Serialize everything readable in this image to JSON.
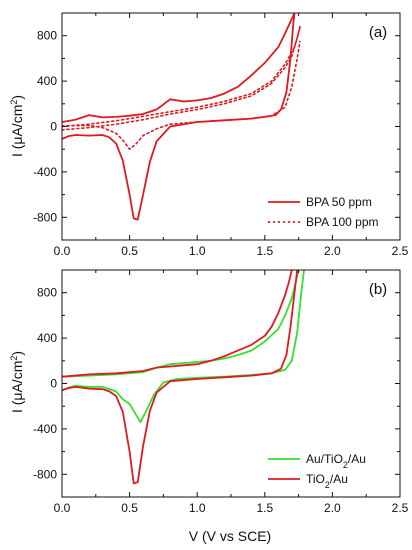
{
  "figure": {
    "xlabel_main": "V (V vs SCE)",
    "ylabel_main": "I (μA/cm",
    "ylabel_sup": "2",
    "ylabel_close": ")"
  },
  "colors": {
    "red": "#e0191f",
    "green": "#33e12b",
    "axis": "#111111"
  },
  "chart_data": [
    {
      "type": "line",
      "panel_label": "(a)",
      "xlim": [
        0,
        2.5
      ],
      "ylim": [
        -1000,
        1000
      ],
      "x_ticks": [
        "0.0",
        "0.5",
        "1.0",
        "1.5",
        "2.0",
        "2.5"
      ],
      "y_ticks": [
        "-800",
        "-400",
        "0",
        "400",
        "800"
      ],
      "x_tick_values": [
        0,
        0.5,
        1.0,
        1.5,
        2.0,
        2.5
      ],
      "y_tick_values": [
        -800,
        -400,
        0,
        400,
        800
      ],
      "legend_position": "bottom-right",
      "series": [
        {
          "name": "BPA 50 ppm",
          "color": "#e0191f",
          "style": "solid",
          "paths": [
            [
              [
                0.0,
                40
              ],
              [
                0.1,
                60
              ],
              [
                0.2,
                100
              ],
              [
                0.3,
                80
              ],
              [
                0.4,
                85
              ],
              [
                0.5,
                95
              ],
              [
                0.6,
                110
              ],
              [
                0.7,
                150
              ],
              [
                0.8,
                240
              ],
              [
                0.9,
                220
              ],
              [
                1.0,
                230
              ],
              [
                1.1,
                250
              ],
              [
                1.2,
                290
              ],
              [
                1.3,
                350
              ],
              [
                1.4,
                450
              ],
              [
                1.5,
                560
              ],
              [
                1.6,
                700
              ],
              [
                1.65,
                820
              ],
              [
                1.7,
                950
              ],
              [
                1.72,
                1000
              ]
            ],
            [
              [
                0.0,
                -110
              ],
              [
                0.05,
                -85
              ],
              [
                0.1,
                -75
              ],
              [
                0.2,
                -80
              ],
              [
                0.3,
                -75
              ],
              [
                0.35,
                -95
              ],
              [
                0.4,
                -150
              ],
              [
                0.45,
                -300
              ],
              [
                0.5,
                -600
              ],
              [
                0.53,
                -810
              ],
              [
                0.56,
                -820
              ],
              [
                0.6,
                -600
              ],
              [
                0.65,
                -310
              ],
              [
                0.7,
                -130
              ],
              [
                0.8,
                0
              ],
              [
                1.0,
                40
              ],
              [
                1.2,
                55
              ],
              [
                1.4,
                70
              ],
              [
                1.5,
                85
              ],
              [
                1.58,
                100
              ],
              [
                1.62,
                150
              ],
              [
                1.66,
                300
              ],
              [
                1.69,
                600
              ],
              [
                1.71,
                900
              ],
              [
                1.72,
                1000
              ]
            ]
          ]
        },
        {
          "name": "BPA 100 ppm",
          "color": "#e0191f",
          "style": "dotted",
          "paths": [
            [
              [
                0.0,
                -30
              ],
              [
                0.2,
                -10
              ],
              [
                0.4,
                20
              ],
              [
                0.6,
                60
              ],
              [
                0.8,
                110
              ],
              [
                1.0,
                150
              ],
              [
                1.2,
                200
              ],
              [
                1.4,
                270
              ],
              [
                1.55,
                380
              ],
              [
                1.65,
                520
              ],
              [
                1.7,
                620
              ],
              [
                1.74,
                780
              ],
              [
                1.76,
                880
              ]
            ],
            [
              [
                0.0,
                0
              ],
              [
                0.2,
                20
              ],
              [
                0.4,
                50
              ],
              [
                0.6,
                90
              ],
              [
                0.8,
                130
              ],
              [
                1.0,
                170
              ],
              [
                1.2,
                220
              ],
              [
                1.4,
                290
              ],
              [
                1.55,
                400
              ],
              [
                1.65,
                550
              ],
              [
                1.72,
                700
              ],
              [
                1.76,
                870
              ]
            ],
            [
              [
                0.0,
                5
              ],
              [
                0.2,
                10
              ],
              [
                0.3,
                -10
              ],
              [
                0.4,
                -60
              ],
              [
                0.45,
                -120
              ],
              [
                0.5,
                -200
              ],
              [
                0.55,
                -150
              ],
              [
                0.6,
                -80
              ],
              [
                0.7,
                -20
              ],
              [
                0.8,
                20
              ],
              [
                1.0,
                40
              ],
              [
                1.2,
                55
              ],
              [
                1.4,
                70
              ],
              [
                1.55,
                95
              ],
              [
                1.65,
                170
              ],
              [
                1.7,
                350
              ],
              [
                1.74,
                600
              ],
              [
                1.76,
                750
              ]
            ]
          ]
        }
      ]
    },
    {
      "type": "line",
      "panel_label": "(b)",
      "xlim": [
        0,
        2.5
      ],
      "ylim": [
        -1000,
        1000
      ],
      "x_ticks": [
        "0.0",
        "0.5",
        "1.0",
        "1.5",
        "2.0",
        "2.5"
      ],
      "y_ticks": [
        "-800",
        "-400",
        "0",
        "400",
        "800"
      ],
      "x_tick_values": [
        0,
        0.5,
        1.0,
        1.5,
        2.0,
        2.5
      ],
      "y_tick_values": [
        -800,
        -400,
        0,
        400,
        800
      ],
      "legend_position": "bottom-right",
      "series": [
        {
          "name": "Au/TiO",
          "name_sub": "2",
          "name_tail": "/Au",
          "color": "#33e12b",
          "style": "solid",
          "paths": [
            [
              [
                0.0,
                60
              ],
              [
                0.2,
                70
              ],
              [
                0.4,
                80
              ],
              [
                0.6,
                100
              ],
              [
                0.7,
                140
              ],
              [
                0.8,
                170
              ],
              [
                0.9,
                180
              ],
              [
                1.0,
                190
              ],
              [
                1.1,
                200
              ],
              [
                1.2,
                220
              ],
              [
                1.3,
                250
              ],
              [
                1.4,
                290
              ],
              [
                1.5,
                370
              ],
              [
                1.6,
                480
              ],
              [
                1.65,
                600
              ],
              [
                1.7,
                750
              ],
              [
                1.73,
                900
              ],
              [
                1.75,
                1000
              ]
            ],
            [
              [
                0.0,
                -60
              ],
              [
                0.05,
                -35
              ],
              [
                0.1,
                -20
              ],
              [
                0.2,
                -30
              ],
              [
                0.3,
                -30
              ],
              [
                0.4,
                -70
              ],
              [
                0.45,
                -140
              ],
              [
                0.5,
                -180
              ],
              [
                0.55,
                -280
              ],
              [
                0.58,
                -340
              ],
              [
                0.62,
                -250
              ],
              [
                0.68,
                -100
              ],
              [
                0.75,
                10
              ],
              [
                0.85,
                40
              ],
              [
                1.0,
                50
              ],
              [
                1.2,
                60
              ],
              [
                1.4,
                75
              ],
              [
                1.55,
                90
              ],
              [
                1.65,
                120
              ],
              [
                1.7,
                200
              ],
              [
                1.74,
                450
              ],
              [
                1.77,
                800
              ],
              [
                1.79,
                1000
              ]
            ]
          ]
        },
        {
          "name": "TiO",
          "name_sub": "2",
          "name_tail": "/Au",
          "color": "#e0191f",
          "style": "solid",
          "paths": [
            [
              [
                0.0,
                60
              ],
              [
                0.2,
                80
              ],
              [
                0.4,
                90
              ],
              [
                0.6,
                110
              ],
              [
                0.7,
                140
              ],
              [
                0.8,
                150
              ],
              [
                0.9,
                160
              ],
              [
                1.0,
                170
              ],
              [
                1.1,
                200
              ],
              [
                1.2,
                240
              ],
              [
                1.3,
                290
              ],
              [
                1.4,
                340
              ],
              [
                1.5,
                420
              ],
              [
                1.55,
                500
              ],
              [
                1.6,
                620
              ],
              [
                1.65,
                780
              ],
              [
                1.68,
                900
              ],
              [
                1.7,
                1000
              ]
            ],
            [
              [
                0.0,
                -60
              ],
              [
                0.05,
                -40
              ],
              [
                0.1,
                -30
              ],
              [
                0.2,
                -45
              ],
              [
                0.3,
                -50
              ],
              [
                0.35,
                -70
              ],
              [
                0.4,
                -110
              ],
              [
                0.45,
                -250
              ],
              [
                0.5,
                -600
              ],
              [
                0.53,
                -880
              ],
              [
                0.56,
                -870
              ],
              [
                0.6,
                -550
              ],
              [
                0.65,
                -240
              ],
              [
                0.7,
                -80
              ],
              [
                0.8,
                20
              ],
              [
                1.0,
                40
              ],
              [
                1.2,
                55
              ],
              [
                1.4,
                70
              ],
              [
                1.55,
                90
              ],
              [
                1.62,
                130
              ],
              [
                1.66,
                250
              ],
              [
                1.69,
                500
              ],
              [
                1.72,
                800
              ],
              [
                1.74,
                1000
              ]
            ]
          ]
        }
      ]
    }
  ]
}
